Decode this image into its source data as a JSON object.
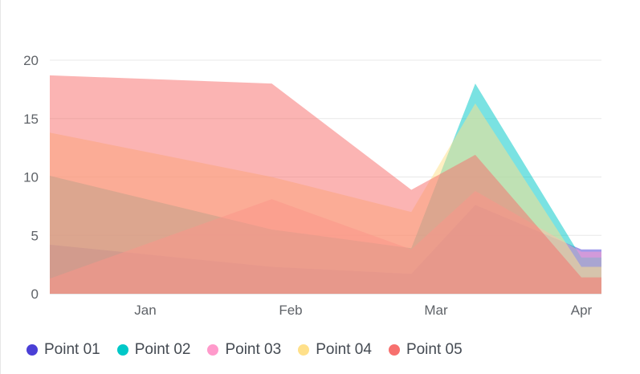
{
  "chart_data": {
    "type": "area",
    "categories": [
      "Jan",
      "Feb",
      "Mar",
      "Apr"
    ],
    "ylim": [
      0,
      20
    ],
    "yticks": [
      0,
      5,
      10,
      15,
      20
    ],
    "grid": true,
    "legend_position": "bottom-left",
    "series": [
      {
        "name": "Point 01",
        "color": "#4a3fd6",
        "points": [
          [
            0.0,
            4.2
          ],
          [
            0.87,
            2.3
          ],
          [
            1.83,
            1.7
          ],
          [
            2.27,
            7.6
          ],
          [
            3.0,
            3.8
          ]
        ]
      },
      {
        "name": "Point 02",
        "color": "#00c8c8",
        "points": [
          [
            0.0,
            10.1
          ],
          [
            0.87,
            5.5
          ],
          [
            1.83,
            3.9
          ],
          [
            2.27,
            18.0
          ],
          [
            3.0,
            3.1
          ]
        ]
      },
      {
        "name": "Point 03",
        "color": "#ff9acb",
        "points": [
          [
            0.0,
            1.3
          ],
          [
            0.87,
            8.1
          ],
          [
            1.83,
            3.8
          ],
          [
            2.27,
            8.8
          ],
          [
            3.0,
            3.6
          ]
        ]
      },
      {
        "name": "Point 04",
        "color": "#ffe08a",
        "points": [
          [
            0.0,
            13.8
          ],
          [
            0.87,
            10.0
          ],
          [
            1.83,
            7.0
          ],
          [
            2.27,
            16.3
          ],
          [
            3.0,
            2.3
          ]
        ]
      },
      {
        "name": "Point 05",
        "color": "#f7706e",
        "points": [
          [
            0.0,
            18.7
          ],
          [
            0.87,
            18.0
          ],
          [
            1.83,
            8.9
          ],
          [
            2.27,
            11.9
          ],
          [
            3.0,
            1.4
          ]
        ]
      }
    ]
  }
}
